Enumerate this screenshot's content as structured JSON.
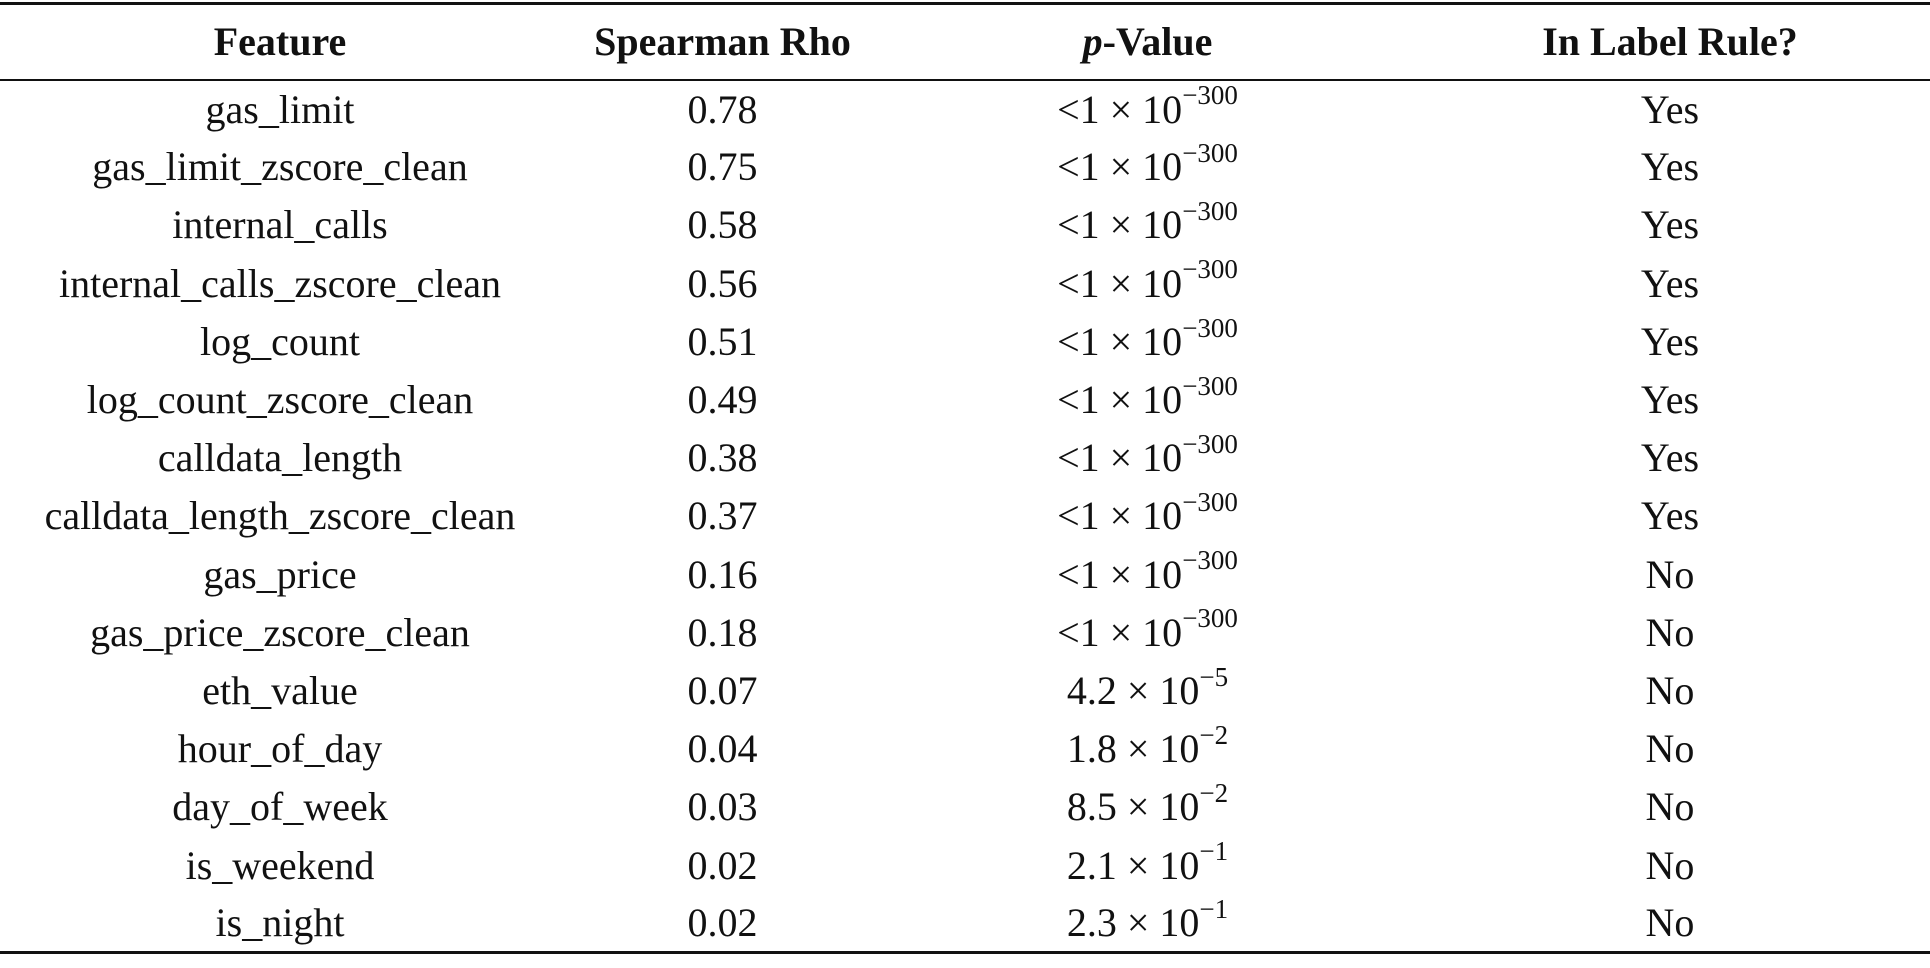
{
  "header": {
    "feature": "Feature",
    "rho": "Spearman Rho",
    "p_italic": "p",
    "p_rest": "-Value",
    "rule": "In Label Rule?"
  },
  "rows": [
    {
      "feature": "gas_limit",
      "rho": "0.78",
      "p_base": "<1 × 10",
      "p_exp": "−300",
      "rule": "Yes"
    },
    {
      "feature": "gas_limit_zscore_clean",
      "rho": "0.75",
      "p_base": "<1 × 10",
      "p_exp": "−300",
      "rule": "Yes"
    },
    {
      "feature": "internal_calls",
      "rho": "0.58",
      "p_base": "<1 × 10",
      "p_exp": "−300",
      "rule": "Yes"
    },
    {
      "feature": "internal_calls_zscore_clean",
      "rho": "0.56",
      "p_base": "<1 × 10",
      "p_exp": "−300",
      "rule": "Yes"
    },
    {
      "feature": "log_count",
      "rho": "0.51",
      "p_base": "<1 × 10",
      "p_exp": "−300",
      "rule": "Yes"
    },
    {
      "feature": "log_count_zscore_clean",
      "rho": "0.49",
      "p_base": "<1 × 10",
      "p_exp": "−300",
      "rule": "Yes"
    },
    {
      "feature": "calldata_length",
      "rho": "0.38",
      "p_base": "<1 × 10",
      "p_exp": "−300",
      "rule": "Yes"
    },
    {
      "feature": "calldata_length_zscore_clean",
      "rho": "0.37",
      "p_base": "<1 × 10",
      "p_exp": "−300",
      "rule": "Yes"
    },
    {
      "feature": "gas_price",
      "rho": "0.16",
      "p_base": "<1 × 10",
      "p_exp": "−300",
      "rule": "No"
    },
    {
      "feature": "gas_price_zscore_clean",
      "rho": "0.18",
      "p_base": "<1 × 10",
      "p_exp": "−300",
      "rule": "No"
    },
    {
      "feature": "eth_value",
      "rho": "0.07",
      "p_base": "4.2 × 10",
      "p_exp": "−5",
      "rule": "No"
    },
    {
      "feature": "hour_of_day",
      "rho": "0.04",
      "p_base": "1.8 × 10",
      "p_exp": "−2",
      "rule": "No"
    },
    {
      "feature": "day_of_week",
      "rho": "0.03",
      "p_base": "8.5 × 10",
      "p_exp": "−2",
      "rule": "No"
    },
    {
      "feature": "is_weekend",
      "rho": "0.02",
      "p_base": "2.1 × 10",
      "p_exp": "−1",
      "rule": "No"
    },
    {
      "feature": "is_night",
      "rho": "0.02",
      "p_base": "2.3 × 10",
      "p_exp": "−1",
      "rule": "No"
    }
  ]
}
